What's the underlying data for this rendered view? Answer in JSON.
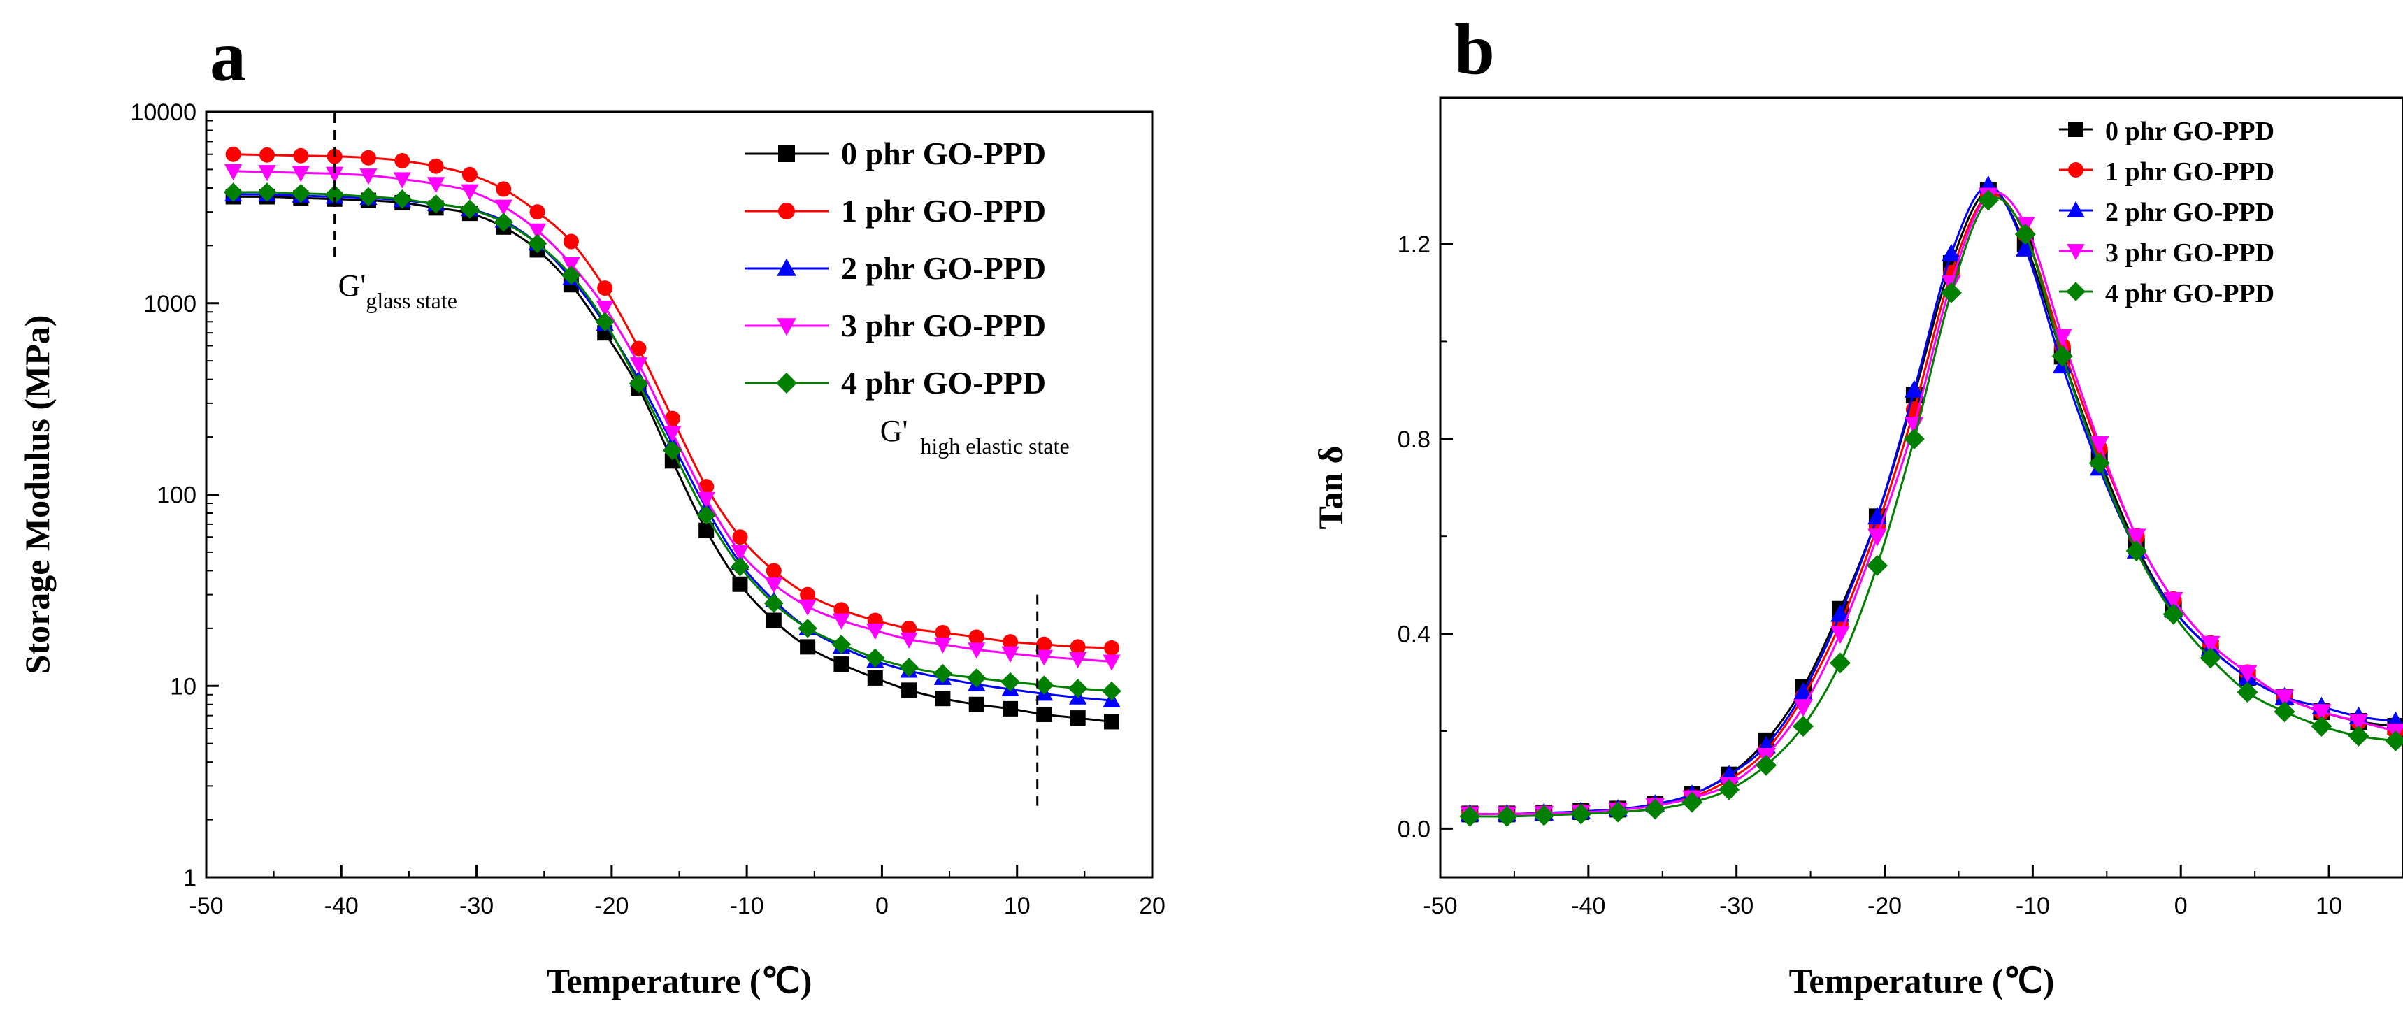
{
  "chart_data": [
    {
      "panel": "a",
      "type": "line",
      "title": "",
      "xlabel": "Temperature (℃)",
      "ylabel": "Storage Modulus (MPa)",
      "yscale": "log",
      "xlim": [
        -50,
        20
      ],
      "ylim": [
        1,
        10000
      ],
      "x_ticks": [
        -50,
        -40,
        -30,
        -20,
        -10,
        0,
        10,
        20
      ],
      "y_ticks": [
        1,
        10,
        100,
        1000,
        10000
      ],
      "x_tick_labels": [
        "-50",
        "-40",
        "-30",
        "-20",
        "-10",
        "0",
        "10",
        "20"
      ],
      "y_tick_labels": [
        "1",
        "10",
        "100",
        "1000",
        "10000"
      ],
      "legend_position": "top-right",
      "x": [
        -48,
        -45.5,
        -43,
        -40.5,
        -38,
        -35.5,
        -33,
        -30.5,
        -28,
        -25.5,
        -23,
        -20.5,
        -18,
        -15.5,
        -13,
        -10.5,
        -8,
        -5.5,
        -3,
        -0.5,
        2,
        4.5,
        7,
        9.5,
        12,
        14.5,
        17
      ],
      "series": [
        {
          "name": "0 phr GO-PPD",
          "color": "#000000",
          "marker": "square",
          "values": [
            3600,
            3600,
            3550,
            3500,
            3450,
            3350,
            3150,
            2950,
            2500,
            1900,
            1250,
            700,
            360,
            150,
            65,
            34,
            22,
            16,
            13,
            11,
            9.5,
            8.6,
            8.0,
            7.6,
            7.1,
            6.8,
            6.5
          ]
        },
        {
          "name": "1 phr GO-PPD",
          "color": "#ff0000",
          "marker": "circle",
          "values": [
            6000,
            5950,
            5900,
            5850,
            5750,
            5550,
            5200,
            4700,
            3950,
            3000,
            2100,
            1200,
            580,
            250,
            110,
            60,
            40,
            30,
            25,
            22,
            20,
            19,
            18,
            17,
            16.5,
            16,
            15.8
          ]
        },
        {
          "name": "2 phr GO-PPD",
          "color": "#0000ff",
          "marker": "triangle-up",
          "values": [
            3700,
            3700,
            3650,
            3600,
            3550,
            3450,
            3300,
            3100,
            2700,
            2050,
            1350,
            780,
            400,
            185,
            85,
            44,
            28,
            20,
            16,
            13.5,
            12,
            11,
            10.2,
            9.6,
            9.1,
            8.7,
            8.4
          ]
        },
        {
          "name": "3 phr GO-PPD",
          "color": "#ff00ff",
          "marker": "triangle-down",
          "values": [
            4900,
            4850,
            4800,
            4750,
            4650,
            4450,
            4200,
            3850,
            3200,
            2400,
            1600,
            950,
            480,
            210,
            95,
            50,
            34,
            26,
            22,
            19.5,
            17.5,
            16.5,
            15.5,
            14.8,
            14.2,
            13.8,
            13.4
          ]
        },
        {
          "name": "4 phr GO-PPD",
          "color": "#008000",
          "marker": "diamond",
          "values": [
            3800,
            3800,
            3750,
            3700,
            3600,
            3500,
            3300,
            3100,
            2650,
            2050,
            1400,
            800,
            380,
            170,
            78,
            42,
            27,
            20,
            16.5,
            14,
            12.5,
            11.6,
            11,
            10.5,
            10.1,
            9.7,
            9.4
          ]
        }
      ],
      "annotations": [
        {
          "text": "G'",
          "subscript": "glass state",
          "at_x": -40.5,
          "at_y": 1500
        },
        {
          "text": "G'",
          "subscript": "high elastic state",
          "at_x": 11.5,
          "at_y": 110
        }
      ]
    },
    {
      "panel": "b",
      "type": "line",
      "title": "",
      "xlabel": "Temperature (℃)",
      "ylabel": "Tan δ",
      "yscale": "linear",
      "xlim": [
        -50,
        15
      ],
      "ylim": [
        -0.1,
        1.5
      ],
      "x_ticks": [
        -50,
        -40,
        -30,
        -20,
        -10,
        0,
        10
      ],
      "y_ticks": [
        0.0,
        0.4,
        0.8,
        1.2
      ],
      "x_tick_labels": [
        "-50",
        "-40",
        "-30",
        "-20",
        "-10",
        "0",
        "10"
      ],
      "y_tick_labels": [
        "0.0",
        "0.4",
        "0.8",
        "1.2"
      ],
      "legend_position": "top-right",
      "x": [
        -48,
        -45.5,
        -43,
        -40.5,
        -38,
        -35.5,
        -33,
        -30.5,
        -28,
        -25.5,
        -23,
        -20.5,
        -18,
        -15.5,
        -13,
        -10.5,
        -8,
        -5.5,
        -3,
        -0.5,
        2,
        4.5,
        7,
        9.5,
        12,
        14.5
      ],
      "series": [
        {
          "name": "0 phr GO-PPD",
          "color": "#000000",
          "marker": "square",
          "values": [
            0.03,
            0.03,
            0.032,
            0.035,
            0.04,
            0.05,
            0.07,
            0.11,
            0.18,
            0.29,
            0.45,
            0.64,
            0.89,
            1.16,
            1.31,
            1.2,
            0.97,
            0.76,
            0.58,
            0.45,
            0.37,
            0.31,
            0.27,
            0.24,
            0.22,
            0.21
          ]
        },
        {
          "name": "1 phr GO-PPD",
          "color": "#ff0000",
          "marker": "circle",
          "values": [
            0.03,
            0.03,
            0.031,
            0.034,
            0.039,
            0.048,
            0.065,
            0.1,
            0.16,
            0.27,
            0.42,
            0.62,
            0.86,
            1.14,
            1.3,
            1.22,
            0.99,
            0.78,
            0.6,
            0.47,
            0.38,
            0.32,
            0.27,
            0.24,
            0.22,
            0.2
          ]
        },
        {
          "name": "2 phr GO-PPD",
          "color": "#0000ff",
          "marker": "triangle-up",
          "values": [
            0.03,
            0.03,
            0.032,
            0.035,
            0.04,
            0.05,
            0.07,
            0.11,
            0.17,
            0.28,
            0.44,
            0.64,
            0.9,
            1.18,
            1.32,
            1.19,
            0.95,
            0.74,
            0.57,
            0.45,
            0.37,
            0.31,
            0.27,
            0.25,
            0.23,
            0.22
          ]
        },
        {
          "name": "3 phr GO-PPD",
          "color": "#ff00ff",
          "marker": "triangle-down",
          "values": [
            0.03,
            0.03,
            0.031,
            0.033,
            0.038,
            0.047,
            0.063,
            0.09,
            0.15,
            0.25,
            0.4,
            0.6,
            0.83,
            1.12,
            1.3,
            1.24,
            1.01,
            0.79,
            0.6,
            0.47,
            0.38,
            0.32,
            0.27,
            0.24,
            0.22,
            0.2
          ]
        },
        {
          "name": "4 phr GO-PPD",
          "color": "#008000",
          "marker": "diamond",
          "values": [
            0.025,
            0.025,
            0.027,
            0.03,
            0.034,
            0.04,
            0.054,
            0.08,
            0.13,
            0.21,
            0.34,
            0.54,
            0.8,
            1.1,
            1.29,
            1.22,
            0.97,
            0.75,
            0.57,
            0.44,
            0.35,
            0.28,
            0.24,
            0.21,
            0.19,
            0.18
          ]
        }
      ],
      "annotations": []
    }
  ]
}
